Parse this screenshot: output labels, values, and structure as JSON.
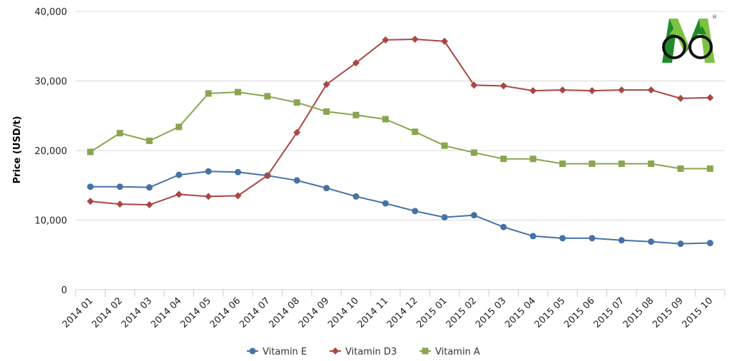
{
  "logo": {
    "text": "CMC",
    "registered": "®",
    "colors": {
      "green_dark": "#1f8a2a",
      "green_light": "#7dc242",
      "ring": "#111111"
    }
  },
  "chart_data": {
    "type": "line",
    "title": "",
    "xlabel": "",
    "ylabel": "Price (USD/t)",
    "ylim": [
      0,
      40000
    ],
    "yticks": [
      0,
      10000,
      20000,
      30000,
      40000
    ],
    "ytick_labels": [
      "0",
      "10,000",
      "20,000",
      "30,000",
      "40,000"
    ],
    "categories": [
      "2014 01",
      "2014 02",
      "2014 03",
      "2014 04",
      "2014 05",
      "2014 06",
      "2014 07",
      "2014 08",
      "2014 09",
      "2014 10",
      "2014 11",
      "2014 12",
      "2015 01",
      "2015 02",
      "2015 03",
      "2015 04",
      "2015 05",
      "2015 06",
      "2015 07",
      "2015 08",
      "2015 09",
      "2015 10"
    ],
    "grid": "horizontal",
    "legend": "bottom-center",
    "series": [
      {
        "name": "Vitamin E",
        "color": "#4572a7",
        "marker": "circle",
        "values": [
          14800,
          14800,
          14700,
          16500,
          17000,
          16900,
          16400,
          15700,
          14600,
          13400,
          12400,
          11300,
          10400,
          10700,
          9000,
          7700,
          7400,
          7400,
          7100,
          6900,
          6600,
          6700
        ]
      },
      {
        "name": "Vitamin D3",
        "color": "#aa4643",
        "marker": "diamond",
        "values": [
          12700,
          12300,
          12200,
          13700,
          13400,
          13500,
          16400,
          22600,
          29500,
          32600,
          35900,
          36000,
          35700,
          29400,
          29300,
          28600,
          28700,
          28600,
          28700,
          28700,
          27500,
          27600
        ]
      },
      {
        "name": "Vitamin A",
        "color": "#89a54e",
        "marker": "square",
        "values": [
          19800,
          22500,
          21400,
          23400,
          28200,
          28400,
          27800,
          26900,
          25600,
          25100,
          24500,
          22700,
          20700,
          19700,
          18800,
          18800,
          18100,
          18100,
          18100,
          18100,
          17400,
          17400
        ]
      }
    ]
  }
}
